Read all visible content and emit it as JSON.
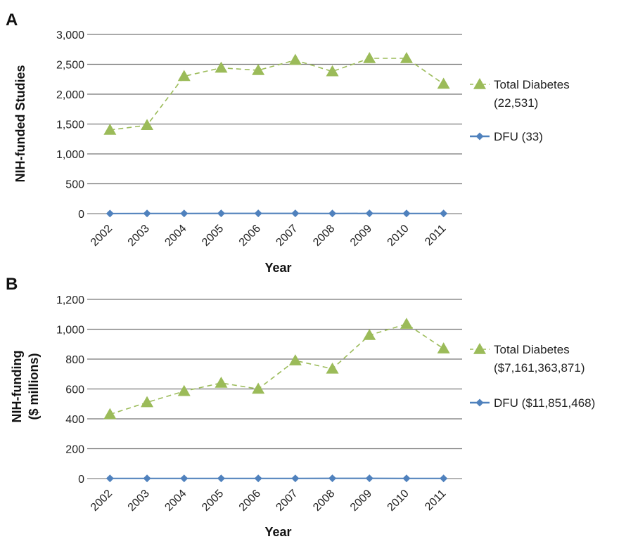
{
  "chart_data": [
    {
      "panel_label": "A",
      "type": "line",
      "xlabel": "Year",
      "ylabel": "NIH-funded Studies",
      "ylim": [
        0,
        3000
      ],
      "yticks": [
        "0",
        "500",
        "1,000",
        "1,500",
        "2,000",
        "2,500",
        "3,000"
      ],
      "ytick_values": [
        0,
        500,
        1000,
        1500,
        2000,
        2500,
        3000
      ],
      "categories": [
        "2002",
        "2003",
        "2004",
        "2005",
        "2006",
        "2007",
        "2008",
        "2009",
        "2010",
        "2011"
      ],
      "grid": "horizontal",
      "legend_position": "right",
      "series": [
        {
          "name": "Total Diabetes",
          "legend_lines": [
            "Total Diabetes",
            "(22,531)"
          ],
          "color": "#9bbb59",
          "marker": "triangle",
          "dash": true,
          "values": [
            1400,
            1480,
            2300,
            2440,
            2400,
            2570,
            2380,
            2600,
            2600,
            2170
          ]
        },
        {
          "name": "DFU",
          "legend_lines": [
            "DFU (33)"
          ],
          "color": "#4f81bd",
          "marker": "diamond",
          "dash": false,
          "values": [
            2,
            3,
            3,
            4,
            4,
            4,
            3,
            4,
            3,
            3
          ]
        }
      ]
    },
    {
      "panel_label": "B",
      "type": "line",
      "xlabel": "Year",
      "ylabel_lines": [
        "NIH-funding",
        "($ millions)"
      ],
      "ylim": [
        0,
        1200
      ],
      "yticks": [
        "0",
        "200",
        "400",
        "600",
        "800",
        "1,000",
        "1,200"
      ],
      "ytick_values": [
        0,
        200,
        400,
        600,
        800,
        1000,
        1200
      ],
      "categories": [
        "2002",
        "2003",
        "2004",
        "2005",
        "2006",
        "2007",
        "2008",
        "2009",
        "2010",
        "2011"
      ],
      "grid": "horizontal",
      "legend_position": "right",
      "series": [
        {
          "name": "Total Diabetes",
          "legend_lines": [
            "Total Diabetes",
            "($7,161,363,871)"
          ],
          "color": "#9bbb59",
          "marker": "triangle",
          "dash": true,
          "values": [
            430,
            510,
            585,
            640,
            600,
            790,
            735,
            960,
            1035,
            870
          ]
        },
        {
          "name": "DFU",
          "legend_lines": [
            "DFU ($11,851,468)"
          ],
          "color": "#4f81bd",
          "marker": "diamond",
          "dash": false,
          "values": [
            1,
            1,
            1,
            1,
            1,
            1,
            2,
            2,
            1,
            1
          ]
        }
      ]
    }
  ]
}
